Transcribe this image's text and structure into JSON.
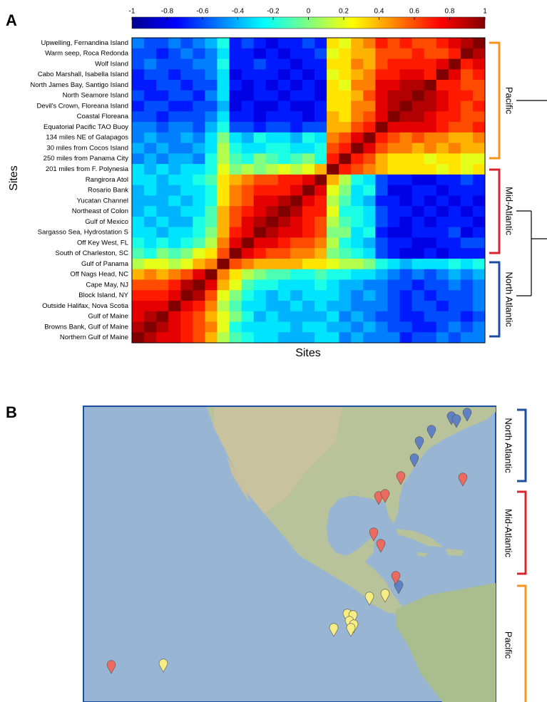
{
  "chart_data": {
    "type": "heatmap",
    "panel_label": "A",
    "ylabel": "Sites",
    "xlabel": "Sites",
    "categories": [
      "Upwelling, Fernandina Island",
      "Warm seep, Roca Redonda",
      "Wolf Island",
      "Cabo Marshall, Isabella Island",
      "North James Bay, Santigo Island",
      "North Seamore Island",
      "Devil's Crown, Floreana Island",
      "Coastal Floreana",
      "Equatorial Pacific TAO Buoy",
      "134 miles NE of Galapagos",
      "30 miles from Cocos Island",
      "250 miles from Panama City",
      "201 miles from F. Polynesia",
      "Rangirora Atol",
      "Rosario Bank",
      "Yucatan Channel",
      "Northeast of Colon",
      "Gulf of Mexico",
      "Sargasso Sea, Hydrostation S",
      "Off Key West, FL",
      "South of Charleston, SC",
      "Gulf of Panama",
      "Off Nags Head, NC",
      "Cape May, NJ",
      "Block Island, NY",
      "Outside Halifax, Nova Scotia",
      "Gulf of Maine",
      "Browns Bank, Gulf of Maine",
      "Northern Gulf of Maine"
    ],
    "zlim": [
      -1,
      1
    ],
    "zticks": [
      -1,
      -0.8,
      -0.6,
      -0.4,
      -0.2,
      0,
      0.2,
      0.4,
      0.6,
      0.8,
      1
    ],
    "groups": [
      "Pacific",
      "Mid-Atlantic",
      "North Atlantic"
    ],
    "values": [
      [
        -0.5,
        -0.6,
        -0.6,
        -0.5,
        -0.6,
        -0.5,
        -0.4,
        -0.2,
        -0.7,
        -0.6,
        -0.7,
        -0.8,
        -0.7,
        -0.7,
        -0.6,
        -0.7,
        0.3,
        0.2,
        0.4,
        0.5,
        0.7,
        0.6,
        0.7,
        0.6,
        0.6,
        0.7,
        0.8,
        0.9,
        1
      ],
      [
        -0.6,
        -0.6,
        -0.7,
        -0.6,
        -0.5,
        -0.6,
        -0.5,
        -0.3,
        -0.7,
        -0.7,
        -0.8,
        -0.7,
        -0.8,
        -0.7,
        -0.7,
        -0.6,
        0.2,
        0.3,
        0.4,
        0.4,
        0.6,
        0.6,
        0.6,
        0.7,
        0.6,
        0.6,
        0.7,
        1,
        0.9
      ],
      [
        -0.6,
        -0.5,
        -0.6,
        -0.6,
        -0.6,
        -0.5,
        -0.5,
        -0.2,
        -0.7,
        -0.7,
        -0.6,
        -0.7,
        -0.7,
        -0.8,
        -0.7,
        -0.7,
        0.3,
        0.3,
        0.5,
        0.4,
        0.6,
        0.7,
        0.7,
        0.7,
        0.7,
        0.8,
        1,
        0.7,
        0.8
      ],
      [
        -0.7,
        -0.6,
        -0.6,
        -0.7,
        -0.6,
        -0.6,
        -0.5,
        -0.3,
        -0.8,
        -0.7,
        -0.7,
        -0.7,
        -0.8,
        -0.7,
        -0.8,
        -0.7,
        0.2,
        0.3,
        0.4,
        0.5,
        0.7,
        0.7,
        0.8,
        0.8,
        0.7,
        1,
        0.8,
        0.6,
        0.7
      ],
      [
        -0.7,
        -0.7,
        -0.6,
        -0.6,
        -0.7,
        -0.6,
        -0.6,
        -0.3,
        -0.7,
        -0.8,
        -0.7,
        -0.8,
        -0.7,
        -0.8,
        -0.7,
        -0.8,
        0.3,
        0.2,
        0.5,
        0.5,
        0.8,
        0.8,
        0.9,
        0.9,
        1,
        0.7,
        0.7,
        0.6,
        0.6
      ],
      [
        -0.6,
        -0.7,
        -0.7,
        -0.6,
        -0.6,
        -0.7,
        -0.5,
        -0.3,
        -0.8,
        -0.8,
        -0.7,
        -0.7,
        -0.8,
        -0.7,
        -0.7,
        -0.8,
        0.3,
        0.3,
        0.4,
        0.6,
        0.8,
        0.9,
        0.9,
        1,
        0.9,
        0.8,
        0.7,
        0.7,
        0.6
      ],
      [
        -0.7,
        -0.6,
        -0.6,
        -0.7,
        -0.7,
        -0.6,
        -0.6,
        -0.4,
        -0.8,
        -0.7,
        -0.8,
        -0.8,
        -0.7,
        -0.8,
        -0.8,
        -0.7,
        0.3,
        0.3,
        0.5,
        0.5,
        0.8,
        0.9,
        1,
        0.9,
        0.9,
        0.8,
        0.7,
        0.6,
        0.7
      ],
      [
        -0.6,
        -0.6,
        -0.7,
        -0.6,
        -0.6,
        -0.6,
        -0.5,
        -0.3,
        -0.7,
        -0.7,
        -0.8,
        -0.7,
        -0.7,
        -0.7,
        -0.8,
        -0.7,
        0.4,
        0.3,
        0.5,
        0.6,
        0.8,
        1,
        0.9,
        0.9,
        0.8,
        0.7,
        0.7,
        0.6,
        0.6
      ],
      [
        -0.5,
        -0.5,
        -0.6,
        -0.5,
        -0.5,
        -0.6,
        -0.4,
        -0.2,
        -0.6,
        -0.6,
        -0.7,
        -0.6,
        -0.6,
        -0.7,
        -0.6,
        -0.6,
        0.4,
        0.4,
        0.6,
        0.7,
        1,
        0.8,
        0.8,
        0.8,
        0.8,
        0.7,
        0.6,
        0.6,
        0.7
      ],
      [
        -0.5,
        -0.4,
        -0.5,
        -0.5,
        -0.4,
        -0.5,
        -0.3,
        0.0,
        -0.3,
        -0.4,
        -0.2,
        -0.3,
        -0.3,
        -0.4,
        -0.2,
        -0.3,
        0.5,
        0.6,
        0.8,
        1,
        0.7,
        0.6,
        0.5,
        0.6,
        0.5,
        0.5,
        0.4,
        0.4,
        0.5
      ],
      [
        -0.4,
        -0.5,
        -0.4,
        -0.5,
        -0.5,
        -0.4,
        -0.3,
        0.1,
        -0.2,
        -0.3,
        -0.3,
        -0.2,
        -0.2,
        -0.3,
        -0.3,
        -0.2,
        0.6,
        0.7,
        1,
        0.8,
        0.6,
        0.5,
        0.5,
        0.4,
        0.5,
        0.4,
        0.5,
        0.4,
        0.4
      ],
      [
        -0.5,
        -0.4,
        -0.5,
        -0.4,
        -0.4,
        -0.5,
        -0.2,
        0.1,
        -0.1,
        -0.2,
        0.0,
        -0.1,
        -0.2,
        -0.1,
        0.0,
        -0.2,
        0.7,
        1,
        0.7,
        0.6,
        0.4,
        0.3,
        0.3,
        0.3,
        0.2,
        0.3,
        0.3,
        0.2,
        0.2
      ],
      [
        -0.3,
        -0.4,
        -0.3,
        -0.4,
        -0.3,
        -0.3,
        -0.2,
        0.2,
        0.0,
        0.1,
        0.0,
        0.1,
        0.2,
        0.1,
        0.2,
        0.4,
        1,
        0.7,
        0.6,
        0.5,
        0.4,
        0.3,
        0.3,
        0.3,
        0.3,
        0.2,
        0.3,
        0.2,
        0.3
      ],
      [
        -0.3,
        -0.3,
        -0.4,
        -0.3,
        -0.3,
        -0.2,
        -0.1,
        0.3,
        0.4,
        0.5,
        0.6,
        0.6,
        0.7,
        0.7,
        0.8,
        1,
        0.4,
        0.1,
        -0.2,
        -0.3,
        -0.6,
        -0.7,
        -0.7,
        -0.8,
        -0.8,
        -0.7,
        -0.7,
        -0.6,
        -0.7
      ],
      [
        -0.4,
        -0.3,
        -0.4,
        -0.4,
        -0.3,
        -0.3,
        -0.2,
        0.3,
        0.5,
        0.6,
        0.7,
        0.7,
        0.7,
        0.8,
        1,
        0.8,
        0.2,
        0.0,
        -0.3,
        -0.2,
        -0.6,
        -0.8,
        -0.8,
        -0.7,
        -0.7,
        -0.8,
        -0.7,
        -0.7,
        -0.7
      ],
      [
        -0.4,
        -0.4,
        -0.4,
        -0.3,
        -0.4,
        -0.3,
        -0.2,
        0.3,
        0.5,
        0.6,
        0.8,
        0.8,
        0.9,
        1,
        0.8,
        0.7,
        0.1,
        -0.1,
        -0.3,
        -0.4,
        -0.7,
        -0.7,
        -0.8,
        -0.7,
        -0.8,
        -0.7,
        -0.8,
        -0.7,
        -0.8
      ],
      [
        -0.4,
        -0.3,
        -0.4,
        -0.4,
        -0.3,
        -0.3,
        -0.1,
        0.4,
        0.6,
        0.7,
        0.8,
        0.9,
        1,
        0.9,
        0.7,
        0.7,
        0.2,
        -0.2,
        -0.2,
        -0.3,
        -0.6,
        -0.7,
        -0.7,
        -0.8,
        -0.7,
        -0.8,
        -0.7,
        -0.8,
        -0.7
      ],
      [
        -0.3,
        -0.4,
        -0.3,
        -0.4,
        -0.4,
        -0.2,
        -0.1,
        0.4,
        0.6,
        0.8,
        0.9,
        1,
        0.9,
        0.8,
        0.7,
        0.6,
        0.1,
        -0.1,
        -0.2,
        -0.3,
        -0.6,
        -0.7,
        -0.8,
        -0.7,
        -0.8,
        -0.7,
        -0.7,
        -0.7,
        -0.8
      ],
      [
        -0.3,
        -0.3,
        -0.4,
        -0.3,
        -0.3,
        -0.2,
        0.0,
        0.4,
        0.7,
        0.8,
        1,
        0.9,
        0.8,
        0.8,
        0.7,
        0.6,
        0.0,
        0.0,
        -0.3,
        -0.2,
        -0.7,
        -0.8,
        -0.8,
        -0.7,
        -0.7,
        -0.7,
        -0.6,
        -0.8,
        -0.7
      ],
      [
        -0.2,
        -0.3,
        -0.2,
        -0.3,
        -0.2,
        -0.1,
        0.1,
        0.5,
        0.8,
        1,
        0.8,
        0.8,
        0.7,
        0.6,
        0.6,
        0.5,
        0.1,
        -0.2,
        -0.3,
        -0.4,
        -0.6,
        -0.7,
        -0.7,
        -0.8,
        -0.8,
        -0.7,
        -0.7,
        -0.6,
        -0.6
      ],
      [
        -0.1,
        -0.2,
        0.0,
        -0.1,
        0.0,
        0.2,
        0.3,
        0.6,
        1,
        0.8,
        0.7,
        0.6,
        0.6,
        0.5,
        0.5,
        0.4,
        0.0,
        -0.1,
        -0.2,
        -0.3,
        -0.6,
        -0.7,
        -0.8,
        -0.8,
        -0.7,
        -0.8,
        -0.7,
        -0.7,
        -0.7
      ],
      [
        0.1,
        0.2,
        0.2,
        0.1,
        0.2,
        0.4,
        0.5,
        1,
        0.6,
        0.5,
        0.4,
        0.4,
        0.4,
        0.4,
        0.3,
        0.3,
        0.2,
        0.1,
        0.1,
        0.0,
        -0.2,
        -0.3,
        -0.4,
        -0.3,
        -0.3,
        -0.3,
        -0.2,
        -0.3,
        -0.2
      ],
      [
        0.4,
        0.5,
        0.4,
        0.5,
        0.6,
        0.8,
        1,
        0.5,
        0.3,
        0.1,
        0.0,
        -0.1,
        -0.1,
        -0.2,
        -0.2,
        -0.1,
        -0.2,
        -0.2,
        -0.3,
        -0.3,
        -0.4,
        -0.5,
        -0.6,
        -0.5,
        -0.6,
        -0.5,
        -0.4,
        -0.5,
        -0.4
      ],
      [
        0.6,
        0.6,
        0.6,
        0.7,
        0.9,
        1,
        0.8,
        0.4,
        0.2,
        -0.1,
        -0.2,
        -0.2,
        -0.3,
        -0.3,
        -0.3,
        -0.2,
        -0.3,
        -0.4,
        -0.4,
        -0.5,
        -0.5,
        -0.6,
        -0.6,
        -0.7,
        -0.6,
        -0.6,
        -0.5,
        -0.6,
        -0.5
      ],
      [
        0.7,
        0.7,
        0.7,
        0.8,
        1,
        0.9,
        0.6,
        0.2,
        0.0,
        -0.2,
        -0.3,
        -0.4,
        -0.3,
        -0.4,
        -0.3,
        -0.3,
        -0.3,
        -0.4,
        -0.5,
        -0.4,
        -0.5,
        -0.6,
        -0.7,
        -0.6,
        -0.7,
        -0.6,
        -0.6,
        -0.6,
        -0.5
      ],
      [
        0.8,
        0.8,
        0.8,
        1,
        0.8,
        0.7,
        0.5,
        0.1,
        -0.1,
        -0.3,
        -0.3,
        -0.4,
        -0.4,
        -0.3,
        -0.4,
        -0.3,
        -0.4,
        -0.4,
        -0.5,
        -0.5,
        -0.5,
        -0.6,
        -0.7,
        -0.6,
        -0.6,
        -0.7,
        -0.6,
        -0.6,
        -0.5
      ],
      [
        0.8,
        0.9,
        1,
        0.8,
        0.7,
        0.6,
        0.4,
        0.2,
        0.0,
        -0.2,
        -0.4,
        -0.3,
        -0.4,
        -0.4,
        -0.4,
        -0.4,
        -0.3,
        -0.5,
        -0.4,
        -0.5,
        -0.6,
        -0.6,
        -0.7,
        -0.7,
        -0.6,
        -0.6,
        -0.6,
        -0.7,
        -0.6
      ],
      [
        0.9,
        1,
        0.9,
        0.8,
        0.7,
        0.6,
        0.5,
        0.2,
        -0.2,
        -0.3,
        -0.3,
        -0.3,
        -0.3,
        -0.4,
        -0.3,
        -0.3,
        -0.4,
        -0.4,
        -0.5,
        -0.4,
        -0.5,
        -0.6,
        -0.6,
        -0.7,
        -0.7,
        -0.6,
        -0.5,
        -0.6,
        -0.5
      ],
      [
        1,
        0.9,
        0.8,
        0.8,
        0.7,
        0.6,
        0.4,
        0.1,
        -0.1,
        -0.2,
        -0.3,
        -0.3,
        -0.4,
        -0.4,
        -0.4,
        -0.3,
        -0.3,
        -0.5,
        -0.4,
        -0.5,
        -0.5,
        -0.5,
        -0.7,
        -0.6,
        -0.6,
        -0.5,
        -0.6,
        -0.5,
        -0.5
      ]
    ]
  },
  "map": {
    "panel_label": "B",
    "groups": [
      "North Atlantic",
      "Mid-Atlantic",
      "Pacific"
    ]
  }
}
